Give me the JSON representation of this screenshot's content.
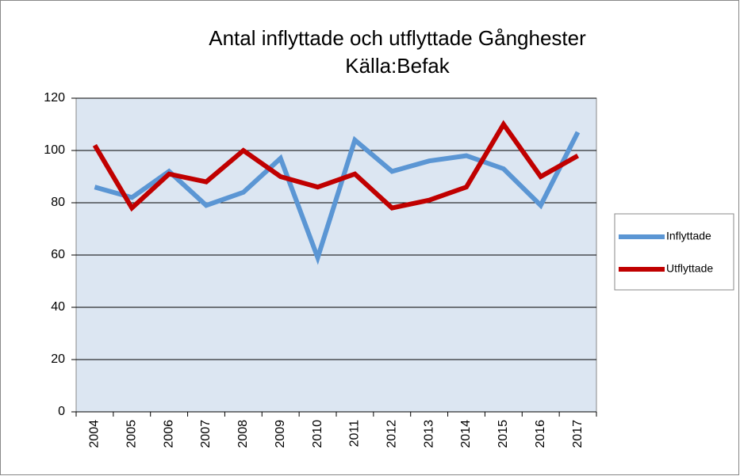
{
  "chart_data": {
    "type": "line",
    "title": "Antal inflyttade och utflyttade Gånghester",
    "subtitle": "Källa:Befak",
    "categories": [
      "2004",
      "2005",
      "2006",
      "2007",
      "2008",
      "2009",
      "2010",
      "2011",
      "2012",
      "2013",
      "2014",
      "2015",
      "2016",
      "2017"
    ],
    "series": [
      {
        "name": "Inflyttade",
        "color": "#5b96d4",
        "values": [
          86,
          82,
          92,
          79,
          84,
          97,
          59,
          104,
          92,
          96,
          98,
          93,
          79,
          107
        ]
      },
      {
        "name": "Utflyttade",
        "color": "#c00000",
        "values": [
          102,
          78,
          91,
          88,
          100,
          90,
          86,
          91,
          78,
          81,
          86,
          110,
          90,
          98
        ]
      }
    ],
    "ylim": [
      0,
      120
    ],
    "yticks": [
      0,
      20,
      40,
      60,
      80,
      100,
      120
    ],
    "grid": true,
    "legend": "right"
  }
}
